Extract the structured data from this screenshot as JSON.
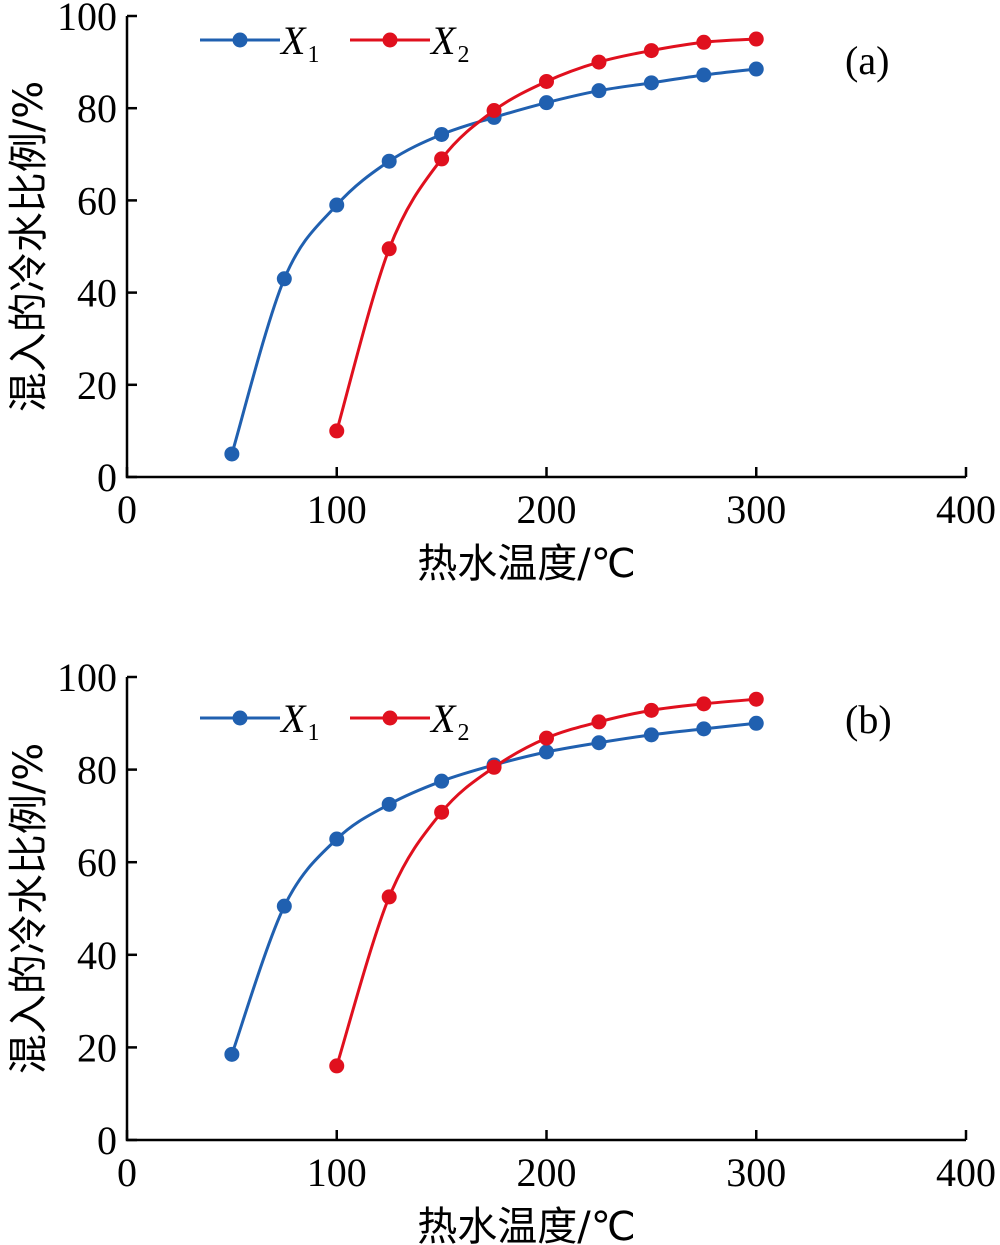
{
  "chart_data": [
    {
      "type": "line",
      "panel_label": "(a)",
      "xlabel": "热水温度/℃",
      "ylabel": "混入的冷水比例/%",
      "xlim": [
        0,
        400
      ],
      "ylim": [
        0,
        100
      ],
      "xticks": [
        0,
        100,
        200,
        300,
        400
      ],
      "yticks": [
        0,
        20,
        40,
        60,
        80,
        100
      ],
      "legend_position": "top-left",
      "series": [
        {
          "name": "X",
          "name_sub": "1",
          "color": "#2060b0",
          "x": [
            50,
            75,
            100,
            125,
            150,
            175,
            200,
            225,
            250,
            275,
            300
          ],
          "y": [
            5,
            43,
            59,
            68.5,
            74.3,
            78,
            81.2,
            83.8,
            85.5,
            87.2,
            88.5
          ]
        },
        {
          "name": "X",
          "name_sub": "2",
          "color": "#e0101e",
          "x": [
            100,
            125,
            150,
            175,
            200,
            225,
            250,
            275,
            300
          ],
          "y": [
            10,
            49.5,
            69,
            79.5,
            85.8,
            90,
            92.5,
            94.3,
            95
          ]
        }
      ]
    },
    {
      "type": "line",
      "panel_label": "(b)",
      "xlabel": "热水温度/℃",
      "ylabel": "混入的冷水比例/%",
      "xlim": [
        0,
        400
      ],
      "ylim": [
        0,
        100
      ],
      "xticks": [
        0,
        100,
        200,
        300,
        400
      ],
      "yticks": [
        0,
        20,
        40,
        60,
        80,
        100
      ],
      "legend_position": "top-left",
      "series": [
        {
          "name": "X",
          "name_sub": "1",
          "color": "#2060b0",
          "x": [
            50,
            75,
            100,
            125,
            150,
            175,
            200,
            225,
            250,
            275,
            300
          ],
          "y": [
            18.5,
            50.5,
            65,
            72.5,
            77.5,
            81,
            83.8,
            85.8,
            87.5,
            88.8,
            90
          ]
        },
        {
          "name": "X",
          "name_sub": "2",
          "color": "#e0101e",
          "x": [
            100,
            125,
            150,
            175,
            200,
            225,
            250,
            275,
            300
          ],
          "y": [
            16,
            52.5,
            70.8,
            80.5,
            86.8,
            90.3,
            92.8,
            94.2,
            95.2
          ]
        }
      ]
    }
  ]
}
